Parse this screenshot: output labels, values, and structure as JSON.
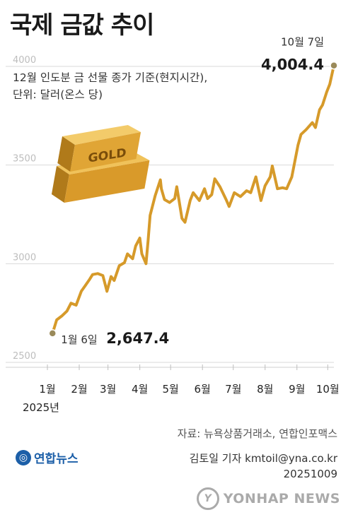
{
  "title": "국제 금값 추이",
  "subtitle_line1": "12월 인도분 금 선물 종가 기준(현지시간),",
  "subtitle_line2": "단위: 달러(온스 당)",
  "source": "자료: 뉴욕상품거래소, 연합인포맥스",
  "reporter": "김토일 기자 kmtoil@yna.co.kr",
  "date_code": "20251009",
  "logo_text": "연합뉴스",
  "watermark_text": "YONHAP NEWS",
  "bar_label": "GOLD",
  "colors": {
    "line": "#d69a2a",
    "grid": "#d9d9d9",
    "gold": "#e2a83a",
    "marker": "#9a8a5a",
    "logo": "#1c5fa8"
  },
  "chart_data": {
    "type": "line",
    "x": [
      "2025-01-06",
      "2025-01-10",
      "2025-01-15",
      "2025-01-20",
      "2025-01-24",
      "2025-01-29",
      "2025-02-03",
      "2025-02-07",
      "2025-02-11",
      "2025-02-14",
      "2025-02-19",
      "2025-02-24",
      "2025-02-28",
      "2025-03-04",
      "2025-03-07",
      "2025-03-12",
      "2025-03-17",
      "2025-03-20",
      "2025-03-25",
      "2025-03-28",
      "2025-04-01",
      "2025-04-03",
      "2025-04-07",
      "2025-04-09",
      "2025-04-11",
      "2025-04-16",
      "2025-04-21",
      "2025-04-22",
      "2025-04-25",
      "2025-04-30",
      "2025-05-05",
      "2025-05-07",
      "2025-05-12",
      "2025-05-15",
      "2025-05-20",
      "2025-05-23",
      "2025-05-29",
      "2025-06-03",
      "2025-06-06",
      "2025-06-10",
      "2025-06-13",
      "2025-06-18",
      "2025-06-24",
      "2025-06-27",
      "2025-07-02",
      "2025-07-08",
      "2025-07-14",
      "2025-07-18",
      "2025-07-23",
      "2025-07-28",
      "2025-08-01",
      "2025-08-06",
      "2025-08-08",
      "2025-08-13",
      "2025-08-18",
      "2025-08-22",
      "2025-08-27",
      "2025-09-02",
      "2025-09-05",
      "2025-09-10",
      "2025-09-16",
      "2025-09-19",
      "2025-09-23",
      "2025-09-26",
      "2025-09-30",
      "2025-10-03",
      "2025-10-07"
    ],
    "y": [
      2647.4,
      2715,
      2735,
      2760,
      2800,
      2790,
      2860,
      2890,
      2920,
      2945,
      2950,
      2940,
      2860,
      2935,
      2915,
      2990,
      3005,
      3050,
      3025,
      3090,
      3130,
      3050,
      3000,
      3115,
      3245,
      3345,
      3425,
      3380,
      3325,
      3310,
      3330,
      3390,
      3230,
      3210,
      3320,
      3360,
      3320,
      3380,
      3330,
      3350,
      3430,
      3390,
      3325,
      3290,
      3360,
      3340,
      3370,
      3360,
      3440,
      3320,
      3395,
      3440,
      3495,
      3380,
      3385,
      3380,
      3440,
      3600,
      3655,
      3680,
      3715,
      3690,
      3780,
      3805,
      3870,
      3910,
      4004.4
    ],
    "ylim": [
      2500,
      4050
    ],
    "yticks": [
      2500,
      3000,
      3500,
      4000
    ],
    "ytick_labels": [
      "2500",
      "3000",
      "3500",
      "4000"
    ],
    "xticks": [
      "1월",
      "2월",
      "3월",
      "4월",
      "5월",
      "6월",
      "7월",
      "8월",
      "9월",
      "10월"
    ],
    "x_year_label": "2025년",
    "start": {
      "label": "1월 6일",
      "value": "2,647.4"
    },
    "end": {
      "label": "10월 7일",
      "value": "4,004.4"
    },
    "grid": true
  }
}
